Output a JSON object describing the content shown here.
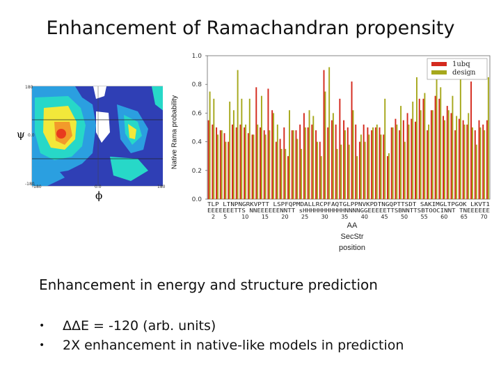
{
  "slide": {
    "title": "Enhancement of Ramachandran propensity",
    "psi_symbol": "ψ",
    "phi_symbol": "ϕ",
    "rama_ticks": {
      "y_top": "180",
      "y_mid": "0.0",
      "y_bottom": "-180",
      "x_left": "-180",
      "x_mid": "0.0",
      "x_right": "180"
    },
    "xaxis_labels": [
      "AA",
      "SecStr",
      "position"
    ],
    "subheading": "Enhancement in energy and structure prediction",
    "bullets": [
      "ΔΔE = -120 (arb. units)",
      "2X enhancement in native-like models in prediction"
    ]
  },
  "chart_data": {
    "type": "bar",
    "ylabel": "Native Rama probability",
    "ylim": [
      0,
      1.0
    ],
    "yticks": [
      "0.0",
      "0.2",
      "0.4",
      "0.6",
      "0.8",
      "1.0"
    ],
    "aa_sequence": "TLP LTNPNGRKVPTT LSPFQPMDALLRCPFAQTGLPPNVKPDTNGQPTTSDT SAKIMGLTPGOK LKVT1",
    "secstr_sequence": "EEEEEEETTS NNEEEEEENNTT sHHHHHHHHHHHNNNNGGEEEEETTSBNNTTSBTOOCINNT TNEEEEEE",
    "position_ticks": [
      "2",
      "5",
      "10",
      "15",
      "20",
      "25",
      "30",
      "35",
      "40",
      "45",
      "50",
      "55",
      "60",
      "65",
      "70"
    ],
    "positions": [
      1,
      2,
      3,
      4,
      5,
      6,
      7,
      8,
      9,
      10,
      11,
      12,
      13,
      14,
      15,
      16,
      17,
      18,
      19,
      20,
      21,
      22,
      23,
      24,
      25,
      26,
      27,
      28,
      29,
      30,
      31,
      32,
      33,
      34,
      35,
      36,
      37,
      38,
      39,
      40,
      41,
      42,
      43,
      44,
      45,
      46,
      47,
      48,
      49,
      50,
      51,
      52,
      53,
      54,
      55,
      56,
      57,
      58,
      59,
      60,
      61,
      62,
      63,
      64,
      65,
      66,
      67,
      68,
      69,
      70,
      71
    ],
    "series": [
      {
        "name": "1ubq",
        "color": "#d42a1e",
        "values": [
          0.55,
          0.52,
          0.5,
          0.48,
          0.46,
          0.4,
          0.52,
          0.5,
          0.52,
          0.5,
          0.46,
          0.45,
          0.78,
          0.5,
          0.48,
          0.77,
          0.62,
          0.4,
          0.42,
          0.5,
          0.3,
          0.48,
          0.48,
          0.52,
          0.6,
          0.5,
          0.52,
          0.48,
          0.4,
          0.9,
          0.5,
          0.55,
          0.52,
          0.7,
          0.55,
          0.5,
          0.82,
          0.52,
          0.4,
          0.52,
          0.5,
          0.48,
          0.5,
          0.5,
          0.45,
          0.3,
          0.5,
          0.56,
          0.48,
          0.55,
          0.6,
          0.56,
          0.54,
          0.7,
          0.7,
          0.48,
          0.62,
          0.72,
          0.7,
          0.58,
          0.65,
          0.6,
          0.48,
          0.56,
          0.55,
          0.52,
          0.82,
          0.48,
          0.55,
          0.52,
          0.55
        ]
      },
      {
        "name": "design",
        "color": "#a6a81c",
        "values": [
          0.75,
          0.7,
          0.45,
          0.48,
          0.4,
          0.68,
          0.62,
          0.9,
          0.7,
          0.52,
          0.7,
          0.45,
          0.52,
          0.72,
          0.45,
          0.48,
          0.6,
          0.52,
          0.35,
          0.35,
          0.62,
          0.48,
          0.42,
          0.35,
          0.5,
          0.62,
          0.58,
          0.4,
          0.3,
          0.75,
          0.92,
          0.6,
          0.35,
          0.38,
          0.48,
          0.38,
          0.62,
          0.3,
          0.45,
          0.4,
          0.45,
          0.5,
          0.52,
          0.45,
          0.7,
          0.32,
          0.5,
          0.52,
          0.65,
          0.4,
          0.52,
          0.68,
          0.85,
          0.62,
          0.74,
          0.52,
          0.62,
          0.9,
          0.78,
          0.55,
          0.62,
          0.72,
          0.58,
          0.85,
          0.52,
          0.6,
          0.5,
          0.38,
          0.5,
          0.48,
          0.85
        ]
      }
    ],
    "legend_position": "top-right",
    "grid": false
  }
}
